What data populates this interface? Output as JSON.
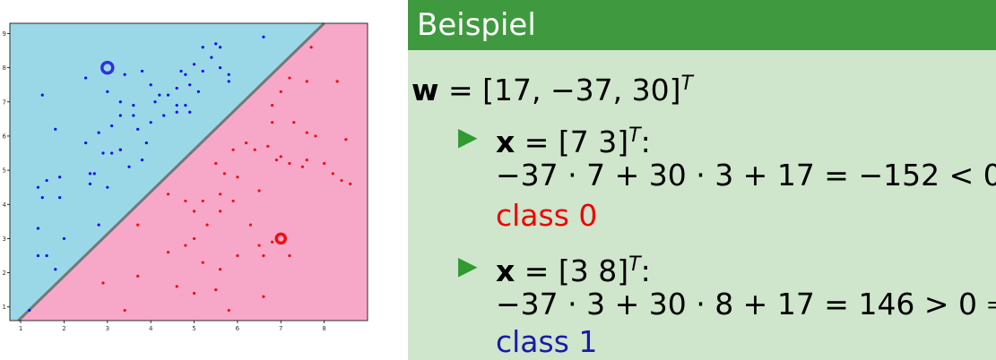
{
  "plot": {
    "x_ticks": [
      "1",
      "2",
      "3",
      "4",
      "5",
      "6",
      "7",
      "8"
    ],
    "y_ticks": [
      "1",
      "2",
      "3",
      "4",
      "5",
      "6",
      "7",
      "8",
      "9"
    ],
    "colors": {
      "class_1_region": "#9ad8e8",
      "class_0_region": "#f7a8c9",
      "class_1_points": "#1010ee",
      "class_0_points": "#ee1010",
      "boundary": "#777777"
    }
  },
  "chart_data": {
    "type": "scatter",
    "title": "",
    "xlabel": "",
    "ylabel": "",
    "xlim": [
      0.75,
      9.0
    ],
    "ylim": [
      0.6,
      9.3
    ],
    "grid": false,
    "decision_boundary": {
      "w": [
        17,
        -37,
        30
      ],
      "equation": "17 - 37*x + 30*y = 0"
    },
    "series": [
      {
        "points": [
          [
            1.2,
            0.9
          ],
          [
            1.4,
            2.5
          ],
          [
            1.6,
            2.5
          ],
          [
            1.8,
            2.1
          ],
          [
            1.4,
            3.3
          ],
          [
            2.0,
            3.0
          ],
          [
            2.8,
            3.4
          ],
          [
            1.5,
            4.2
          ],
          [
            1.9,
            4.2
          ],
          [
            1.4,
            4.5
          ],
          [
            1.6,
            4.7
          ],
          [
            1.9,
            4.8
          ],
          [
            2.6,
            4.9
          ],
          [
            2.6,
            4.6
          ],
          [
            2.7,
            4.9
          ],
          [
            3.0,
            4.5
          ],
          [
            2.9,
            5.5
          ],
          [
            3.1,
            5.5
          ],
          [
            3.3,
            5.6
          ],
          [
            3.5,
            5.1
          ],
          [
            3.8,
            5.3
          ],
          [
            2.5,
            5.8
          ],
          [
            2.8,
            6.1
          ],
          [
            3.1,
            6.3
          ],
          [
            3.3,
            6.6
          ],
          [
            3.6,
            6.6
          ],
          [
            3.6,
            6.9
          ],
          [
            3.7,
            6.2
          ],
          [
            3.9,
            5.8
          ],
          [
            4.0,
            6.4
          ],
          [
            4.3,
            6.6
          ],
          [
            4.1,
            7.0
          ],
          [
            4.2,
            7.2
          ],
          [
            4.6,
            6.9
          ],
          [
            4.6,
            6.7
          ],
          [
            4.9,
            6.7
          ],
          [
            4.8,
            6.9
          ],
          [
            4.4,
            7.2
          ],
          [
            4.6,
            7.4
          ],
          [
            4.9,
            7.5
          ],
          [
            5.1,
            7.3
          ],
          [
            4.8,
            7.8
          ],
          [
            5.2,
            7.9
          ],
          [
            5.6,
            8.0
          ],
          [
            5.8,
            7.6
          ],
          [
            5.8,
            7.8
          ],
          [
            5.4,
            8.3
          ],
          [
            5.6,
            8.6
          ],
          [
            5.0,
            8.1
          ],
          [
            4.7,
            7.9
          ],
          [
            3.4,
            7.8
          ],
          [
            3.8,
            7.9
          ],
          [
            4.0,
            7.5
          ],
          [
            2.5,
            7.7
          ],
          [
            3.3,
            7.0
          ],
          [
            1.5,
            7.2
          ],
          [
            1.8,
            6.2
          ],
          [
            3.0,
            7.3
          ],
          [
            5.2,
            8.6
          ],
          [
            5.5,
            8.7
          ],
          [
            6.6,
            8.9
          ],
          [
            3.3,
            5.6
          ]
        ]
      },
      {
        "points": [
          [
            2.9,
            1.7
          ],
          [
            3.4,
            0.9
          ],
          [
            3.7,
            1.9
          ],
          [
            4.6,
            1.6
          ],
          [
            5.0,
            1.4
          ],
          [
            5.5,
            1.5
          ],
          [
            5.8,
            0.9
          ],
          [
            6.6,
            1.3
          ],
          [
            5.2,
            2.3
          ],
          [
            5.6,
            2.1
          ],
          [
            6.0,
            2.5
          ],
          [
            6.6,
            2.5
          ],
          [
            6.8,
            2.9
          ],
          [
            7.2,
            2.5
          ],
          [
            4.4,
            2.6
          ],
          [
            4.8,
            2.8
          ],
          [
            5.0,
            3.0
          ],
          [
            5.3,
            3.4
          ],
          [
            5.0,
            3.8
          ],
          [
            5.6,
            3.8
          ],
          [
            6.3,
            3.4
          ],
          [
            6.5,
            2.8
          ],
          [
            3.7,
            3.4
          ],
          [
            4.4,
            4.3
          ],
          [
            4.8,
            4.1
          ],
          [
            5.2,
            4.1
          ],
          [
            5.6,
            4.3
          ],
          [
            5.9,
            4.1
          ],
          [
            6.5,
            4.4
          ],
          [
            6.0,
            4.8
          ],
          [
            5.7,
            4.9
          ],
          [
            5.5,
            5.2
          ],
          [
            5.9,
            5.6
          ],
          [
            6.2,
            5.8
          ],
          [
            6.4,
            5.6
          ],
          [
            6.7,
            5.7
          ],
          [
            6.9,
            5.3
          ],
          [
            7.0,
            5.4
          ],
          [
            7.2,
            5.2
          ],
          [
            7.6,
            5.3
          ],
          [
            8.0,
            5.2
          ],
          [
            8.2,
            4.9
          ],
          [
            8.6,
            4.6
          ],
          [
            8.4,
            4.7
          ],
          [
            8.5,
            5.9
          ],
          [
            7.8,
            6.0
          ],
          [
            7.6,
            6.1
          ],
          [
            7.3,
            6.4
          ],
          [
            6.8,
            6.4
          ],
          [
            6.8,
            6.9
          ],
          [
            7.0,
            7.3
          ],
          [
            7.2,
            7.7
          ],
          [
            7.6,
            7.6
          ],
          [
            7.7,
            8.6
          ],
          [
            8.3,
            7.6
          ],
          [
            7.5,
            5.1
          ]
        ]
      }
    ],
    "highlighted_points": [
      [
        3.0,
        8.0
      ],
      [
        7.0,
        3.0
      ]
    ]
  },
  "slide": {
    "title": "Beispiel",
    "w_lhs": "w",
    "w_eq": "= [17, −37, 30]",
    "sup_t": "T",
    "items": [
      {
        "x_lhs": "x",
        "x_eq": "= [7  3]",
        "colon": ":",
        "calc": "−37 · 7 + 30 · 3 + 17 = −152 < 0 ⇒",
        "result": "class 0"
      },
      {
        "x_lhs": "x",
        "x_eq": "= [3  8]",
        "colon": ":",
        "calc": "−37 · 3 + 30 · 8 + 17 = 146 > 0 ⇒",
        "result": "class 1"
      }
    ]
  }
}
